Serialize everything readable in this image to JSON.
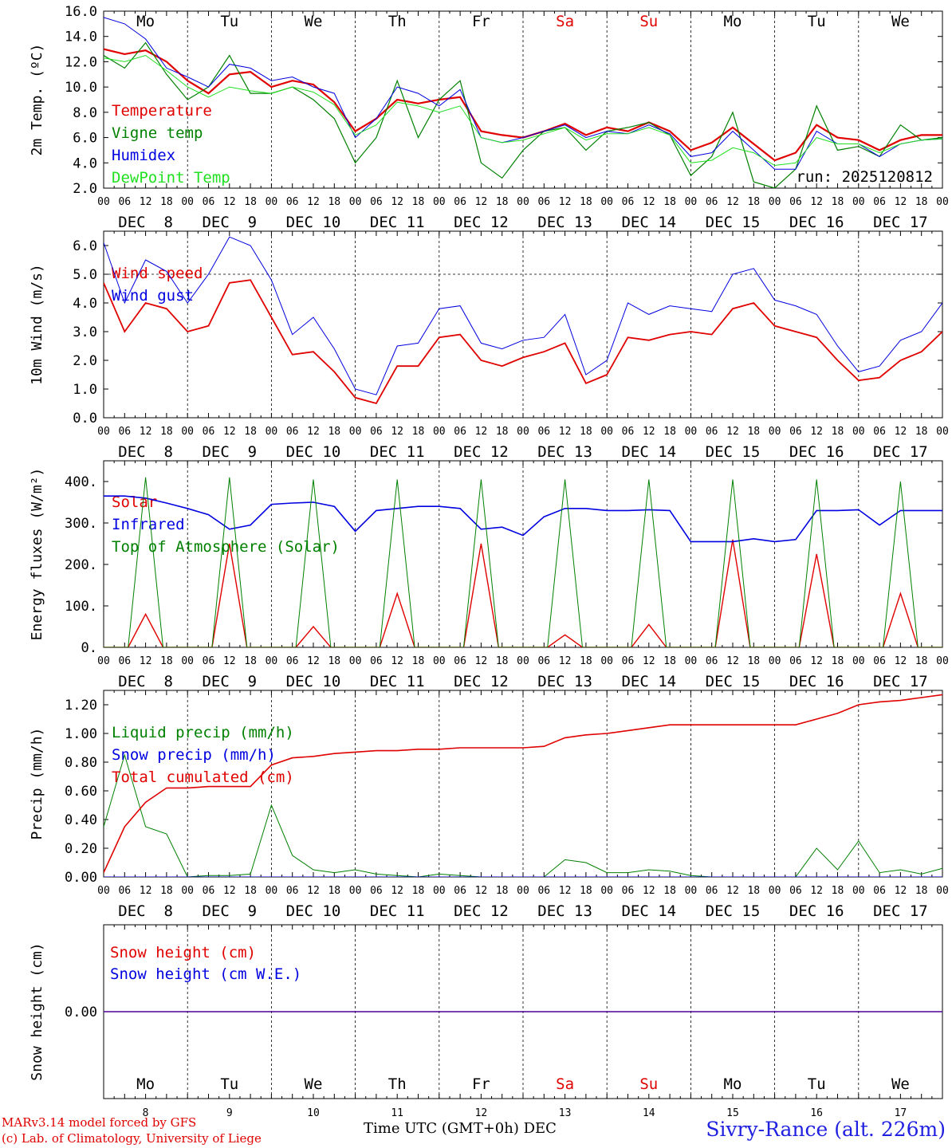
{
  "colors": {
    "red": "#e00000",
    "green": "#008000",
    "blue": "#0000e0",
    "lightgreen": "#20e020",
    "grey": "#000000"
  },
  "days": [
    {
      "dow": "Mo",
      "date": "DEC  8",
      "num": "8",
      "weekend": false
    },
    {
      "dow": "Tu",
      "date": "DEC  9",
      "num": "9",
      "weekend": false
    },
    {
      "dow": "We",
      "date": "DEC 10",
      "num": "10",
      "weekend": false
    },
    {
      "dow": "Th",
      "date": "DEC 11",
      "num": "11",
      "weekend": false
    },
    {
      "dow": "Fr",
      "date": "DEC 12",
      "num": "12",
      "weekend": false
    },
    {
      "dow": "Sa",
      "date": "DEC 13",
      "num": "13",
      "weekend": true
    },
    {
      "dow": "Su",
      "date": "DEC 14",
      "num": "14",
      "weekend": true
    },
    {
      "dow": "Mo",
      "date": "DEC 15",
      "num": "15",
      "weekend": false
    },
    {
      "dow": "Tu",
      "date": "DEC 16",
      "num": "16",
      "weekend": false
    },
    {
      "dow": "We",
      "date": "DEC 17",
      "num": "17",
      "weekend": false
    }
  ],
  "hour_ticks": [
    "00",
    "06",
    "12",
    "18"
  ],
  "footer": {
    "model": "MARv3.14 model forced by GFS",
    "lab": "(c) Lab. of Climatology, University of Liege",
    "xlabel": "Time UTC (GMT+0h) DEC",
    "station": "Sivry-Rance (alt. 226m)"
  },
  "chart_data": [
    {
      "type": "line",
      "ylabel": "2m Temp. (ºC)",
      "ylim": [
        2,
        16
      ],
      "yticks": [
        "2.0",
        "4.0",
        "6.0",
        "8.0",
        "10.0",
        "12.0",
        "14.0",
        "16.0"
      ],
      "annotation": "run: 2025120812",
      "x_hours": [
        0,
        6,
        12,
        18,
        24,
        30,
        36,
        42,
        48,
        54,
        60,
        66,
        72,
        78,
        84,
        90,
        96,
        102,
        108,
        114,
        120,
        126,
        132,
        138,
        144,
        150,
        156,
        162,
        168,
        174,
        180,
        186,
        192,
        198,
        204,
        210,
        216,
        222,
        228,
        234,
        240
      ],
      "series": [
        {
          "name": "Temperature",
          "color": "#e00000",
          "width": 2.2,
          "values": [
            13.0,
            12.6,
            12.9,
            12.0,
            10.5,
            9.5,
            11.0,
            11.2,
            10.0,
            10.5,
            10.2,
            8.8,
            6.5,
            7.5,
            9.0,
            8.7,
            9.0,
            9.2,
            6.5,
            6.2,
            6.0,
            6.5,
            7.1,
            6.2,
            6.8,
            6.5,
            7.2,
            6.5,
            5.0,
            5.6,
            6.8,
            5.5,
            4.2,
            4.8,
            7.0,
            6.0,
            5.8,
            5.0,
            5.8,
            6.2,
            6.2
          ]
        },
        {
          "name": "Vigne temp",
          "color": "#008000",
          "width": 1.2,
          "values": [
            12.5,
            11.5,
            13.5,
            11.0,
            9.0,
            10.0,
            12.5,
            9.5,
            9.5,
            10.0,
            9.0,
            7.5,
            4.0,
            6.0,
            10.5,
            6.0,
            9.0,
            10.5,
            4.0,
            2.8,
            5.0,
            6.5,
            6.8,
            5.0,
            6.5,
            6.8,
            7.2,
            6.2,
            3.0,
            4.5,
            8.0,
            2.5,
            2.0,
            3.5,
            8.5,
            5.0,
            5.3,
            4.5,
            7.0,
            5.8,
            6.0
          ]
        },
        {
          "name": "Humidex",
          "color": "#0000e0",
          "width": 1.0,
          "values": [
            15.5,
            15.0,
            13.8,
            11.5,
            10.8,
            10.0,
            11.8,
            11.5,
            10.5,
            10.8,
            10.0,
            9.5,
            6.0,
            7.5,
            10.0,
            9.5,
            8.5,
            9.8,
            6.0,
            5.6,
            6.0,
            6.5,
            7.0,
            6.0,
            6.5,
            6.3,
            7.0,
            6.3,
            4.5,
            4.8,
            6.5,
            5.0,
            3.5,
            3.5,
            6.5,
            5.5,
            5.5,
            4.5,
            5.5,
            5.8,
            5.9
          ]
        },
        {
          "name": "DewPoint Temp",
          "color": "#20e020",
          "width": 1.0,
          "values": [
            12.3,
            12.0,
            12.5,
            11.3,
            10.0,
            9.2,
            10.0,
            9.7,
            9.5,
            10.0,
            9.6,
            8.6,
            6.2,
            7.0,
            8.8,
            8.5,
            8.0,
            8.5,
            6.0,
            5.6,
            5.8,
            6.3,
            6.8,
            5.8,
            6.3,
            6.3,
            6.8,
            6.2,
            4.0,
            4.2,
            5.2,
            4.8,
            3.8,
            4.0,
            6.0,
            5.5,
            5.5,
            4.8,
            5.5,
            5.8,
            5.9
          ]
        }
      ]
    },
    {
      "type": "line",
      "ylabel": "10m Wind (m/s)",
      "ylim": [
        0,
        6.5
      ],
      "yticks": [
        "0.0",
        "1.0",
        "2.0",
        "3.0",
        "4.0",
        "5.0",
        "6.0"
      ],
      "ref_line": 5.0,
      "x_hours": [
        0,
        6,
        12,
        18,
        24,
        30,
        36,
        42,
        48,
        54,
        60,
        66,
        72,
        78,
        84,
        90,
        96,
        102,
        108,
        114,
        120,
        126,
        132,
        138,
        144,
        150,
        156,
        162,
        168,
        174,
        180,
        186,
        192,
        198,
        204,
        210,
        216,
        222,
        228,
        234,
        240
      ],
      "series": [
        {
          "name": "Wind speed",
          "color": "#e00000",
          "width": 1.8,
          "values": [
            4.7,
            3.0,
            4.0,
            3.8,
            3.0,
            3.2,
            4.7,
            4.8,
            3.5,
            2.2,
            2.3,
            1.6,
            0.7,
            0.5,
            1.8,
            1.8,
            2.8,
            2.9,
            2.0,
            1.8,
            2.1,
            2.3,
            2.6,
            1.2,
            1.5,
            2.8,
            2.7,
            2.9,
            3.0,
            2.9,
            3.8,
            4.0,
            3.2,
            3.0,
            2.8,
            2.0,
            1.3,
            1.4,
            2.0,
            2.3,
            3.0
          ]
        },
        {
          "name": "Wind gust",
          "color": "#0000e0",
          "width": 1.0,
          "values": [
            6.1,
            4.0,
            5.5,
            5.1,
            4.0,
            5.0,
            6.3,
            6.0,
            4.8,
            2.9,
            3.5,
            2.4,
            1.0,
            0.8,
            2.5,
            2.6,
            3.8,
            3.9,
            2.6,
            2.4,
            2.7,
            2.8,
            3.6,
            1.5,
            2.0,
            4.0,
            3.6,
            3.9,
            3.8,
            3.7,
            5.0,
            5.2,
            4.1,
            3.9,
            3.6,
            2.5,
            1.6,
            1.8,
            2.7,
            3.0,
            4.0
          ]
        }
      ]
    },
    {
      "type": "line",
      "ylabel": "Energy fluxes (W/m²)",
      "ylim": [
        0,
        450
      ],
      "yticks": [
        "0.",
        "100.",
        "200.",
        "300.",
        "400."
      ],
      "x_hours": [
        0,
        6,
        12,
        18,
        24,
        30,
        36,
        42,
        48,
        54,
        60,
        66,
        72,
        78,
        84,
        90,
        96,
        102,
        108,
        114,
        120,
        126,
        132,
        138,
        144,
        150,
        156,
        162,
        168,
        174,
        180,
        186,
        192,
        198,
        204,
        210,
        216,
        222,
        228,
        234,
        240
      ],
      "series": [
        {
          "name": "Solar",
          "color": "#e00000",
          "width": 1.4,
          "peaks": [
            80,
            250,
            50,
            130,
            250,
            30,
            55,
            260,
            225,
            130
          ]
        },
        {
          "name": "Infrared",
          "color": "#0000e0",
          "width": 1.6,
          "values": [
            365,
            365,
            360,
            348,
            335,
            320,
            285,
            295,
            345,
            348,
            350,
            340,
            280,
            330,
            335,
            340,
            340,
            335,
            285,
            290,
            270,
            315,
            335,
            335,
            330,
            330,
            332,
            330,
            255,
            255,
            255,
            262,
            255,
            260,
            330,
            330,
            332,
            295,
            330,
            330,
            330
          ]
        },
        {
          "name": "Top of Atmosphere (Solar)",
          "color": "#008000",
          "width": 1.0,
          "peaks": [
            410,
            410,
            405,
            405,
            405,
            405,
            405,
            405,
            405,
            400
          ]
        }
      ]
    },
    {
      "type": "line",
      "ylabel": "Precip (mm/h)",
      "ylim": [
        0,
        1.3
      ],
      "yticks": [
        "0.00",
        "0.20",
        "0.40",
        "0.60",
        "0.80",
        "1.00",
        "1.20"
      ],
      "x_hours": [
        0,
        6,
        12,
        18,
        24,
        30,
        36,
        42,
        48,
        54,
        60,
        66,
        72,
        78,
        84,
        90,
        96,
        102,
        108,
        114,
        120,
        126,
        132,
        138,
        144,
        150,
        156,
        162,
        168,
        174,
        180,
        186,
        192,
        198,
        204,
        210,
        216,
        222,
        228,
        234,
        240
      ],
      "series": [
        {
          "name": "Liquid precip (mm/h)",
          "color": "#008000",
          "width": 1.0,
          "values": [
            0.35,
            0.85,
            0.35,
            0.3,
            0.0,
            0.01,
            0.01,
            0.02,
            0.5,
            0.15,
            0.05,
            0.03,
            0.05,
            0.02,
            0.01,
            0.0,
            0.02,
            0.01,
            0.0,
            0.0,
            0.0,
            0.0,
            0.12,
            0.1,
            0.03,
            0.03,
            0.05,
            0.04,
            0.01,
            0.0,
            0.0,
            0.0,
            0.0,
            0.0,
            0.2,
            0.05,
            0.25,
            0.03,
            0.05,
            0.02,
            0.06
          ]
        },
        {
          "name": "Snow precip (mm/h)",
          "color": "#0000e0",
          "width": 1.0,
          "values": [
            0,
            0,
            0,
            0,
            0,
            0,
            0,
            0,
            0,
            0,
            0,
            0,
            0,
            0,
            0,
            0,
            0,
            0,
            0,
            0,
            0,
            0,
            0,
            0,
            0,
            0,
            0,
            0,
            0,
            0,
            0,
            0,
            0,
            0,
            0,
            0,
            0,
            0,
            0,
            0,
            0
          ]
        },
        {
          "name": "Total cumulated (cm)",
          "color": "#e00000",
          "width": 1.6,
          "values": [
            0.03,
            0.35,
            0.52,
            0.62,
            0.62,
            0.63,
            0.63,
            0.63,
            0.78,
            0.83,
            0.84,
            0.86,
            0.87,
            0.88,
            0.88,
            0.89,
            0.89,
            0.9,
            0.9,
            0.9,
            0.9,
            0.91,
            0.97,
            0.99,
            1.0,
            1.02,
            1.04,
            1.06,
            1.06,
            1.06,
            1.06,
            1.06,
            1.06,
            1.06,
            1.1,
            1.14,
            1.2,
            1.22,
            1.23,
            1.25,
            1.27
          ]
        }
      ]
    },
    {
      "type": "line",
      "ylabel": "Snow height (cm)",
      "ylim": [
        -1,
        1
      ],
      "yticks": [
        "0.00"
      ],
      "x_hours": [
        0,
        240
      ],
      "series": [
        {
          "name": "Snow height (cm)",
          "color": "#e00000",
          "width": 1.4,
          "values": [
            0,
            0
          ]
        },
        {
          "name": "Snow height (cm W.E.)",
          "color": "#0000e0",
          "width": 1.0,
          "values": [
            0,
            0
          ]
        }
      ]
    }
  ]
}
